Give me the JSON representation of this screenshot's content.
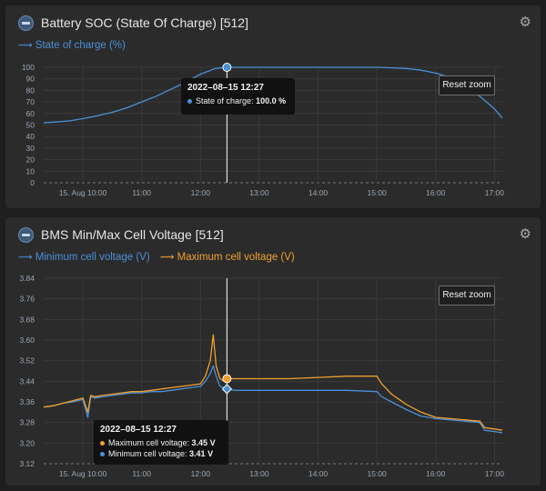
{
  "colors": {
    "soc": "#4a90d9",
    "min_cell": "#4a90d9",
    "max_cell": "#f0a030",
    "grid": "#3a3a3a",
    "tick_text": "#9aa7b4",
    "cursor": "#ffffff"
  },
  "panel1": {
    "title": "Battery SOC (State Of Charge) [512]",
    "icon": "battery-icon",
    "settings_icon": "gear-icon",
    "legend": [
      "State of charge (%)"
    ],
    "reset_label": "Reset zoom",
    "tooltip": {
      "title": "2022–08–15 12:27",
      "rows": [
        {
          "label": "State of charge:",
          "value": "100.0 %",
          "color": "#4a90d9"
        }
      ]
    }
  },
  "panel2": {
    "title": "BMS Min/Max Cell Voltage [512]",
    "icon": "battery-icon",
    "settings_icon": "gear-icon",
    "legend": [
      "Minimum cell voltage (V)",
      "Maximum cell voltage (V)"
    ],
    "reset_label": "Reset zoom",
    "tooltip": {
      "title": "2022–08–15 12:27",
      "rows": [
        {
          "label": "Maximum cell voltage:",
          "value": "3.45 V",
          "color": "#f0a030"
        },
        {
          "label": "Minimum cell voltage:",
          "value": "3.41 V",
          "color": "#4a90d9"
        }
      ]
    }
  },
  "chart_data": [
    {
      "type": "line",
      "title": "Battery SOC (State Of Charge) [512]",
      "x_ticks": [
        "15. Aug 10:00",
        "11:00",
        "12:00",
        "13:00",
        "14:00",
        "15:00",
        "16:00",
        "17:00"
      ],
      "y_ticks": [
        "0",
        "10",
        "20",
        "30",
        "40",
        "50",
        "60",
        "70",
        "80",
        "90",
        "100"
      ],
      "ylim": [
        0,
        100
      ],
      "xlim": [
        "09:20",
        "17:08"
      ],
      "cursor_x": "12:27",
      "grid": true,
      "series": [
        {
          "name": "State of charge (%)",
          "color": "#4a90d9",
          "x": [
            "09:20",
            "09:30",
            "09:45",
            "10:00",
            "10:15",
            "10:30",
            "10:45",
            "11:00",
            "11:15",
            "11:30",
            "11:45",
            "12:00",
            "12:15",
            "12:27",
            "12:45",
            "13:00",
            "13:30",
            "14:00",
            "14:30",
            "15:00",
            "15:15",
            "15:30",
            "15:45",
            "16:00",
            "16:15",
            "16:30",
            "16:45",
            "17:00",
            "17:08"
          ],
          "values": [
            52,
            52.5,
            53.5,
            55.5,
            58,
            61,
            65,
            70,
            75,
            81,
            87,
            94,
            99,
            100,
            100,
            100,
            100,
            100,
            100,
            100,
            99.5,
            99,
            97.5,
            95,
            91,
            84,
            75,
            64,
            56
          ]
        }
      ]
    },
    {
      "type": "line",
      "title": "BMS Min/Max Cell Voltage [512]",
      "x_ticks": [
        "15. Aug 10:00",
        "11:00",
        "12:00",
        "13:00",
        "14:00",
        "15:00",
        "16:00",
        "17:00"
      ],
      "y_ticks": [
        "3.12",
        "3.20",
        "3.28",
        "3.36",
        "3.44",
        "3.52",
        "3.60",
        "3.68",
        "3.76",
        "3.84"
      ],
      "ylim": [
        3.12,
        3.84
      ],
      "xlim": [
        "09:20",
        "17:08"
      ],
      "cursor_x": "12:27",
      "grid": true,
      "series": [
        {
          "name": "Minimum cell voltage (V)",
          "color": "#4a90d9",
          "x": [
            "09:20",
            "09:30",
            "09:40",
            "09:50",
            "10:00",
            "10:05",
            "10:08",
            "10:12",
            "10:20",
            "10:30",
            "10:40",
            "10:50",
            "11:00",
            "11:10",
            "11:20",
            "11:30",
            "11:40",
            "11:50",
            "12:00",
            "12:05",
            "12:10",
            "12:13",
            "12:16",
            "12:20",
            "12:24",
            "12:27",
            "12:35",
            "13:00",
            "13:30",
            "14:00",
            "14:30",
            "15:00",
            "15:05",
            "15:15",
            "15:30",
            "15:45",
            "16:00",
            "16:15",
            "16:30",
            "16:45",
            "16:50",
            "17:00",
            "17:08"
          ],
          "values": [
            3.34,
            3.345,
            3.355,
            3.36,
            3.37,
            3.3,
            3.38,
            3.375,
            3.38,
            3.385,
            3.39,
            3.395,
            3.395,
            3.4,
            3.4,
            3.405,
            3.41,
            3.415,
            3.42,
            3.44,
            3.47,
            3.5,
            3.46,
            3.42,
            3.415,
            3.41,
            3.405,
            3.405,
            3.405,
            3.405,
            3.405,
            3.4,
            3.38,
            3.36,
            3.33,
            3.305,
            3.295,
            3.29,
            3.285,
            3.28,
            3.25,
            3.245,
            3.24
          ]
        },
        {
          "name": "Maximum cell voltage (V)",
          "color": "#f0a030",
          "x": [
            "09:20",
            "09:30",
            "09:40",
            "09:50",
            "10:00",
            "10:05",
            "10:08",
            "10:12",
            "10:20",
            "10:30",
            "10:40",
            "10:50",
            "11:00",
            "11:10",
            "11:20",
            "11:30",
            "11:40",
            "11:50",
            "12:00",
            "12:05",
            "12:10",
            "12:13",
            "12:16",
            "12:20",
            "12:24",
            "12:27",
            "12:35",
            "13:00",
            "13:30",
            "14:00",
            "14:30",
            "15:00",
            "15:05",
            "15:15",
            "15:30",
            "15:45",
            "16:00",
            "16:15",
            "16:30",
            "16:45",
            "16:50",
            "17:00",
            "17:08"
          ],
          "values": [
            3.34,
            3.345,
            3.355,
            3.365,
            3.375,
            3.32,
            3.385,
            3.38,
            3.385,
            3.39,
            3.395,
            3.4,
            3.4,
            3.405,
            3.41,
            3.415,
            3.42,
            3.425,
            3.43,
            3.46,
            3.52,
            3.62,
            3.5,
            3.45,
            3.44,
            3.45,
            3.45,
            3.45,
            3.45,
            3.455,
            3.46,
            3.46,
            3.43,
            3.39,
            3.35,
            3.32,
            3.3,
            3.295,
            3.29,
            3.285,
            3.26,
            3.255,
            3.25
          ]
        }
      ]
    }
  ]
}
